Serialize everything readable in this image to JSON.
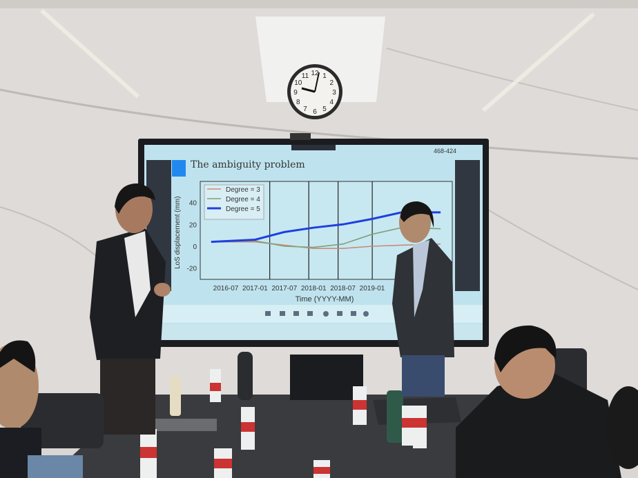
{
  "clock": {
    "numerals": [
      "12",
      "1",
      "2",
      "3",
      "4",
      "5",
      "6",
      "7",
      "8",
      "9",
      "10",
      "11"
    ]
  },
  "screen": {
    "top_caption": "468-424",
    "slide_title": "The ambiguity problem",
    "legend": [
      "Degree = 3",
      "Degree = 4",
      "Degree = 5"
    ],
    "ylabel": "LoS displacement (mm)",
    "xlabel": "Time (YYYY-MM)",
    "yticks": [
      "40",
      "20",
      "0",
      "-20"
    ],
    "xticks": [
      "2016-07",
      "2017-01",
      "2017-07",
      "2018-01",
      "2018-07",
      "2019-01",
      "20"
    ]
  },
  "chart_data": {
    "type": "line",
    "xlabel": "Time (YYYY-MM)",
    "ylabel": "LoS displacement (mm)",
    "ylim": [
      -30,
      55
    ],
    "x": [
      "2016-04",
      "2017-01",
      "2017-07",
      "2018-01",
      "2018-07",
      "2019-01",
      "2019-07",
      "2020-03"
    ],
    "series": [
      {
        "name": "Degree = 3",
        "color": "#c98a7a",
        "values": [
          4,
          4,
          1,
          -2,
          -2,
          0,
          1,
          2
        ]
      },
      {
        "name": "Degree = 4",
        "color": "#7fa07a",
        "values": [
          4,
          5,
          0,
          -1,
          2,
          11,
          17,
          16
        ]
      },
      {
        "name": "Degree = 5",
        "color": "#1f3fe0",
        "values": [
          4,
          6,
          13,
          17,
          20,
          25,
          31,
          31
        ]
      }
    ],
    "vertical_lines": [
      "2017-04",
      "2017-12",
      "2018-06",
      "2019-01"
    ],
    "grid": false,
    "legend_placement": "top-left"
  }
}
